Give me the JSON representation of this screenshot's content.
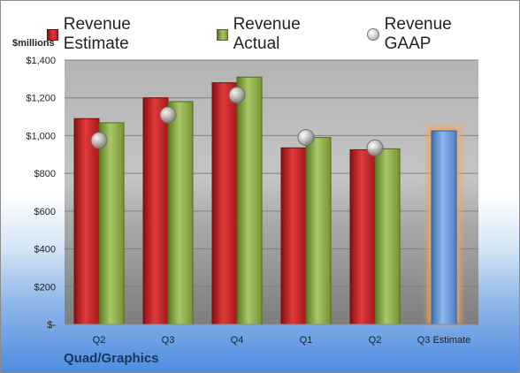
{
  "chart_data": {
    "type": "bar",
    "title": "",
    "ylabel": "$millions",
    "xlabel": "",
    "company": "Quad/Graphics",
    "categories": [
      "Q2",
      "Q3",
      "Q4",
      "Q1",
      "Q2",
      "Q3 Estimate"
    ],
    "ylim": [
      0,
      1400
    ],
    "yticks": [
      0,
      200,
      400,
      600,
      800,
      1000,
      1200,
      1400
    ],
    "ytick_labels": [
      "$-",
      "$200",
      "$400",
      "$600",
      "$800",
      "$1,000",
      "$1,200",
      "$1,400"
    ],
    "legend_position": "top",
    "grid": true,
    "series": [
      {
        "name": "Revenue Estimate",
        "kind": "bar",
        "color": "#c0292b",
        "values": [
          1090,
          1200,
          1280,
          935,
          925,
          null
        ]
      },
      {
        "name": "Revenue Actual",
        "kind": "bar",
        "color": "#8fb249",
        "values": [
          1068,
          1180,
          1310,
          990,
          930,
          null
        ]
      },
      {
        "name": "Revenue GAAP",
        "kind": "marker",
        "color": "#c8c8c8",
        "values": [
          975,
          1110,
          1215,
          990,
          935,
          null
        ]
      },
      {
        "name": "Q3 Estimate",
        "kind": "bar",
        "color": "#5b92d6",
        "highlight": "#f4a55a",
        "values": [
          null,
          null,
          null,
          null,
          null,
          1025
        ]
      }
    ]
  }
}
